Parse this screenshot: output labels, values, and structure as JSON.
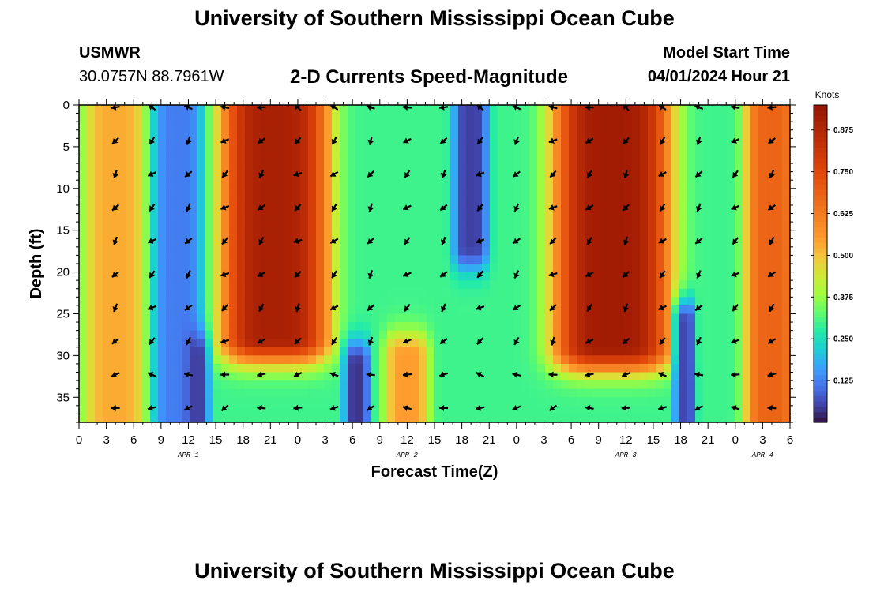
{
  "header": {
    "title": "University of Southern Mississippi Ocean Cube",
    "station": "USMWR",
    "coordinates": "30.0757N  88.7961W",
    "subtitle": "2-D Currents Speed-Magnitude",
    "model_start_label": "Model Start Time",
    "model_start_value": "04/01/2024 Hour 21"
  },
  "footer": {
    "title": "University of Southern Mississippi Ocean Cube"
  },
  "chart_data": {
    "type": "heatmap",
    "title": "2-D Currents Speed-Magnitude",
    "xlabel": "Forecast Time(Z)",
    "ylabel": "Depth (ft)",
    "x_tick_labels": [
      "0",
      "3",
      "6",
      "9",
      "12",
      "15",
      "18",
      "21",
      "0",
      "3",
      "6",
      "9",
      "12",
      "15",
      "18",
      "21",
      "0",
      "3",
      "6",
      "9",
      "12",
      "15",
      "18",
      "21",
      "0",
      "3",
      "6"
    ],
    "x_range_hours": [
      0,
      78
    ],
    "date_labels": [
      {
        "label": "APR 1",
        "hour": 12
      },
      {
        "label": "APR 2",
        "hour": 36
      },
      {
        "label": "APR 3",
        "hour": 60
      },
      {
        "label": "APR 4",
        "hour": 75
      }
    ],
    "y_ticks": [
      0,
      5,
      10,
      15,
      20,
      25,
      30,
      35
    ],
    "y_range_ft": [
      0,
      38
    ],
    "colorbar": {
      "title": "Knots",
      "ticks": [
        "0.125",
        "0.250",
        "0.375",
        "0.500",
        "0.625",
        "0.750",
        "0.875"
      ],
      "range": [
        0.0,
        0.95
      ]
    },
    "speed_features": [
      {
        "hour_center": 4,
        "hour_halfwidth": 3.5,
        "depth_min": 0,
        "depth_max": 38,
        "speed": 0.53
      },
      {
        "hour_center": 11,
        "hour_halfwidth": 3,
        "depth_min": 0,
        "depth_max": 38,
        "speed": 0.12
      },
      {
        "hour_center": 21.5,
        "hour_halfwidth": 6,
        "depth_min": 0,
        "depth_max": 28,
        "speed": 0.9
      },
      {
        "hour_center": 43,
        "hour_halfwidth": 2,
        "depth_min": 0,
        "depth_max": 17,
        "speed": 0.05
      },
      {
        "hour_center": 58.5,
        "hour_halfwidth": 6.5,
        "depth_min": 0,
        "depth_max": 29,
        "speed": 0.92
      },
      {
        "hour_center": 76,
        "hour_halfwidth": 3,
        "depth_min": 0,
        "depth_max": 38,
        "speed": 0.68
      },
      {
        "hour_center": 30.5,
        "hour_halfwidth": 1.5,
        "depth_min": 31,
        "depth_max": 38,
        "speed": 0.04
      },
      {
        "hour_center": 36,
        "hour_halfwidth": 2.5,
        "depth_min": 30,
        "depth_max": 38,
        "speed": 0.55
      },
      {
        "hour_center": 66.5,
        "hour_halfwidth": 1.2,
        "depth_min": 26,
        "depth_max": 38,
        "speed": 0.06
      },
      {
        "hour_center": 13,
        "hour_halfwidth": 1.3,
        "depth_min": 30,
        "depth_max": 38,
        "speed": 0.05
      }
    ],
    "arrow_grid": {
      "hours": [
        4,
        8,
        12,
        16,
        20,
        24,
        28,
        32,
        36,
        40,
        44,
        48,
        52,
        56,
        60,
        64,
        68,
        72,
        76
      ],
      "depths": [
        0,
        4,
        8,
        12,
        16,
        20,
        24,
        28,
        32,
        36
      ],
      "direction_deg_by_depth": [
        200,
        135,
        135,
        135,
        135,
        135,
        135,
        135,
        180,
        170
      ]
    }
  }
}
